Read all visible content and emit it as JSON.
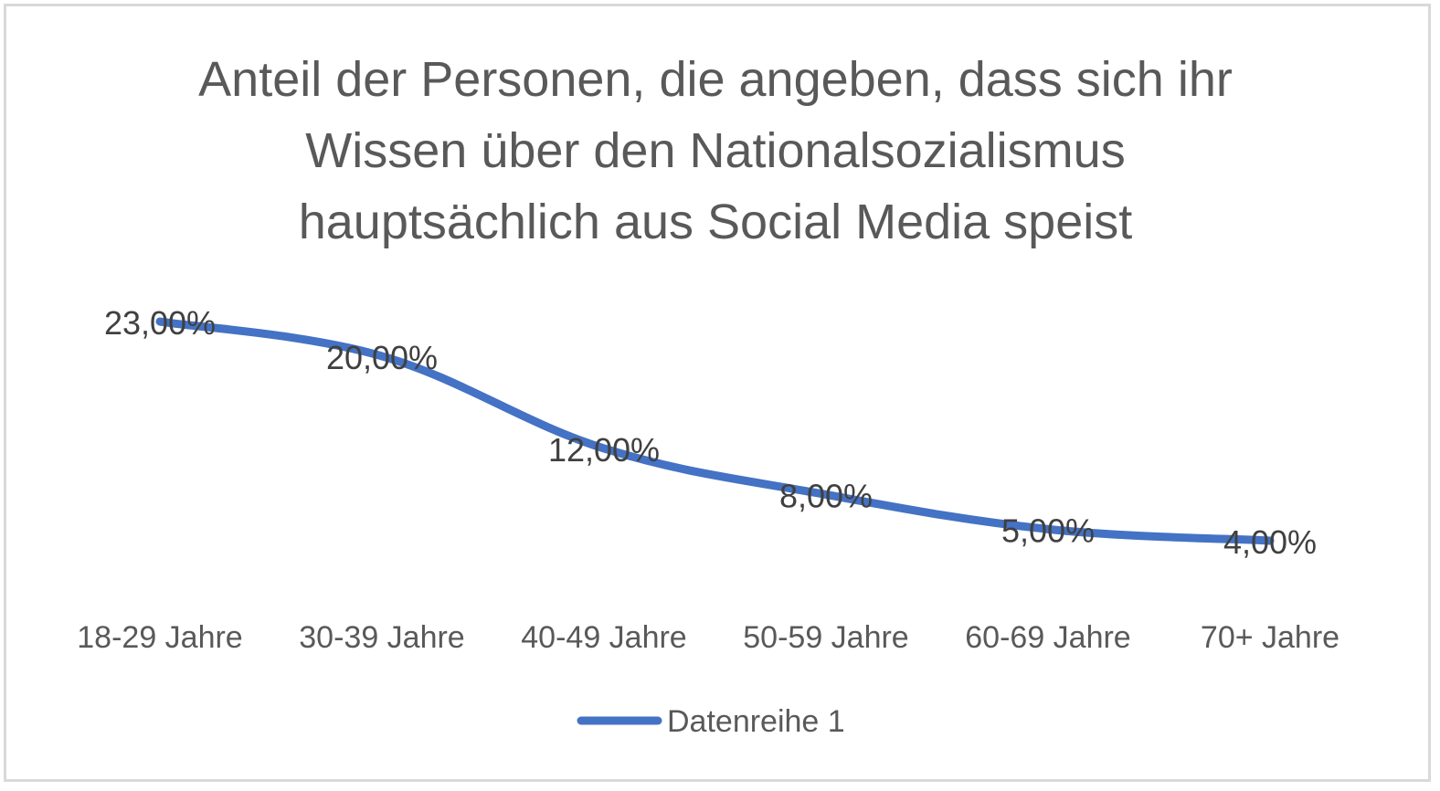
{
  "chart_data": {
    "type": "line",
    "title": "Anteil der Personen, die angeben, dass sich ihr Wissen über den Nationalsozialismus hauptsächlich aus Social Media speist",
    "title_lines": [
      "Anteil der Personen, die angeben, dass sich ihr",
      "Wissen über den Nationalsozialismus",
      "hauptsächlich aus Social Media speist"
    ],
    "categories": [
      "18-29 Jahre",
      "30-39 Jahre",
      "40-49 Jahre",
      "50-59 Jahre",
      "60-69 Jahre",
      "70+ Jahre"
    ],
    "series": [
      {
        "name": "Datenreihe 1",
        "values": [
          23,
          20,
          12,
          8,
          5,
          4
        ],
        "labels": [
          "23,00%",
          "20,00%",
          "12,00%",
          "8,00%",
          "5,00%",
          "4,00%"
        ],
        "color": "#4472c4"
      }
    ],
    "xlabel": "",
    "ylabel": "",
    "ylim": [
      0,
      25
    ],
    "grid": false,
    "y_axis_visible": false,
    "legend_position": "bottom",
    "smooth": true
  },
  "colors": {
    "text": "#595959",
    "label": "#404040",
    "border": "#d9d9d9"
  }
}
